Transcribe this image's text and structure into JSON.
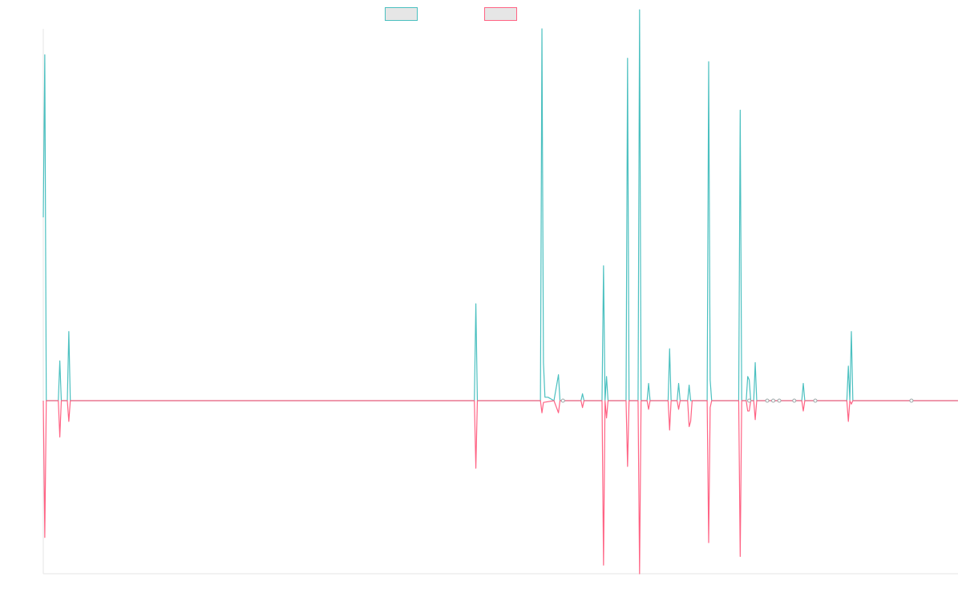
{
  "chart_data": {
    "type": "line",
    "title": "",
    "xlabel": "",
    "ylabel": "",
    "grid": false,
    "legend_position": "top",
    "ylim": [
      -1,
      1.075
    ],
    "x_count": 610,
    "series": [
      {
        "name": "",
        "color": "#4bc0c0",
        "fill": "#e6e6e6",
        "values": {
          "0": 0.53,
          "1": 1.0,
          "2": 0,
          "10": 0,
          "11": 0.115,
          "12": 0,
          "16": 0,
          "17": 0.2,
          "18": 0,
          "287": 0,
          "288": 0.28,
          "289": 0,
          "331": 0,
          "332": 1.075,
          "333": 0.11,
          "334": 0.01,
          "336": 0.01,
          "340": 0,
          "343": 0.075,
          "344": 0,
          "358": 0,
          "359": 0.02,
          "360": 0,
          "372": 0,
          "373": 0.39,
          "374": 0,
          "375": 0.07,
          "376": 0,
          "388": 0,
          "389": 0.99,
          "390": 0,
          "396": 0,
          "397": 1.13,
          "398": 0,
          "402": 0,
          "403": 0.05,
          "404": 0,
          "416": 0,
          "417": 0.15,
          "418": 0,
          "422": 0,
          "423": 0.05,
          "424": 0,
          "429": 0,
          "430": 0.045,
          "431": 0,
          "442": 0,
          "443": 0.98,
          "444": 0.06,
          "445": 0,
          "463": 0,
          "464": 0.84,
          "465": 0,
          "468": 0,
          "469": 0.07,
          "470": 0.06,
          "471": 0,
          "473": 0,
          "474": 0.11,
          "475": 0,
          "505": 0,
          "506": 0.05,
          "507": 0,
          "535": 0,
          "536": 0.1,
          "537": 0,
          "538": 0.2,
          "539": 0,
          "609": 0
        }
      },
      {
        "name": "",
        "color": "#ff6384",
        "fill": "#e6e6e6",
        "values": {
          "0": 0,
          "1": -0.79,
          "2": 0,
          "10": 0,
          "11": -0.21,
          "12": 0,
          "16": 0,
          "17": -0.12,
          "18": 0,
          "287": 0,
          "288": -0.39,
          "289": 0,
          "331": 0,
          "332": -0.07,
          "333": -0.01,
          "340": 0,
          "343": -0.07,
          "344": 0,
          "358": 0,
          "359": -0.04,
          "360": 0,
          "372": 0,
          "373": -0.95,
          "374": 0,
          "375": -0.1,
          "376": 0,
          "388": 0,
          "389": -0.38,
          "390": 0,
          "396": 0,
          "397": -1.0,
          "398": 0,
          "402": 0,
          "403": -0.05,
          "404": 0,
          "416": 0,
          "417": -0.17,
          "418": 0,
          "422": 0,
          "423": -0.05,
          "424": 0,
          "429": 0,
          "430": -0.15,
          "431": -0.12,
          "432": 0,
          "442": 0,
          "443": -0.82,
          "444": -0.04,
          "445": 0,
          "463": 0,
          "464": -0.9,
          "465": 0,
          "468": 0,
          "469": -0.06,
          "470": -0.06,
          "471": 0,
          "473": 0,
          "474": -0.11,
          "475": 0,
          "505": 0,
          "506": -0.06,
          "507": 0,
          "535": 0,
          "536": -0.12,
          "537": 0,
          "538": -0.02,
          "539": 0,
          "609": 0
        }
      }
    ]
  }
}
